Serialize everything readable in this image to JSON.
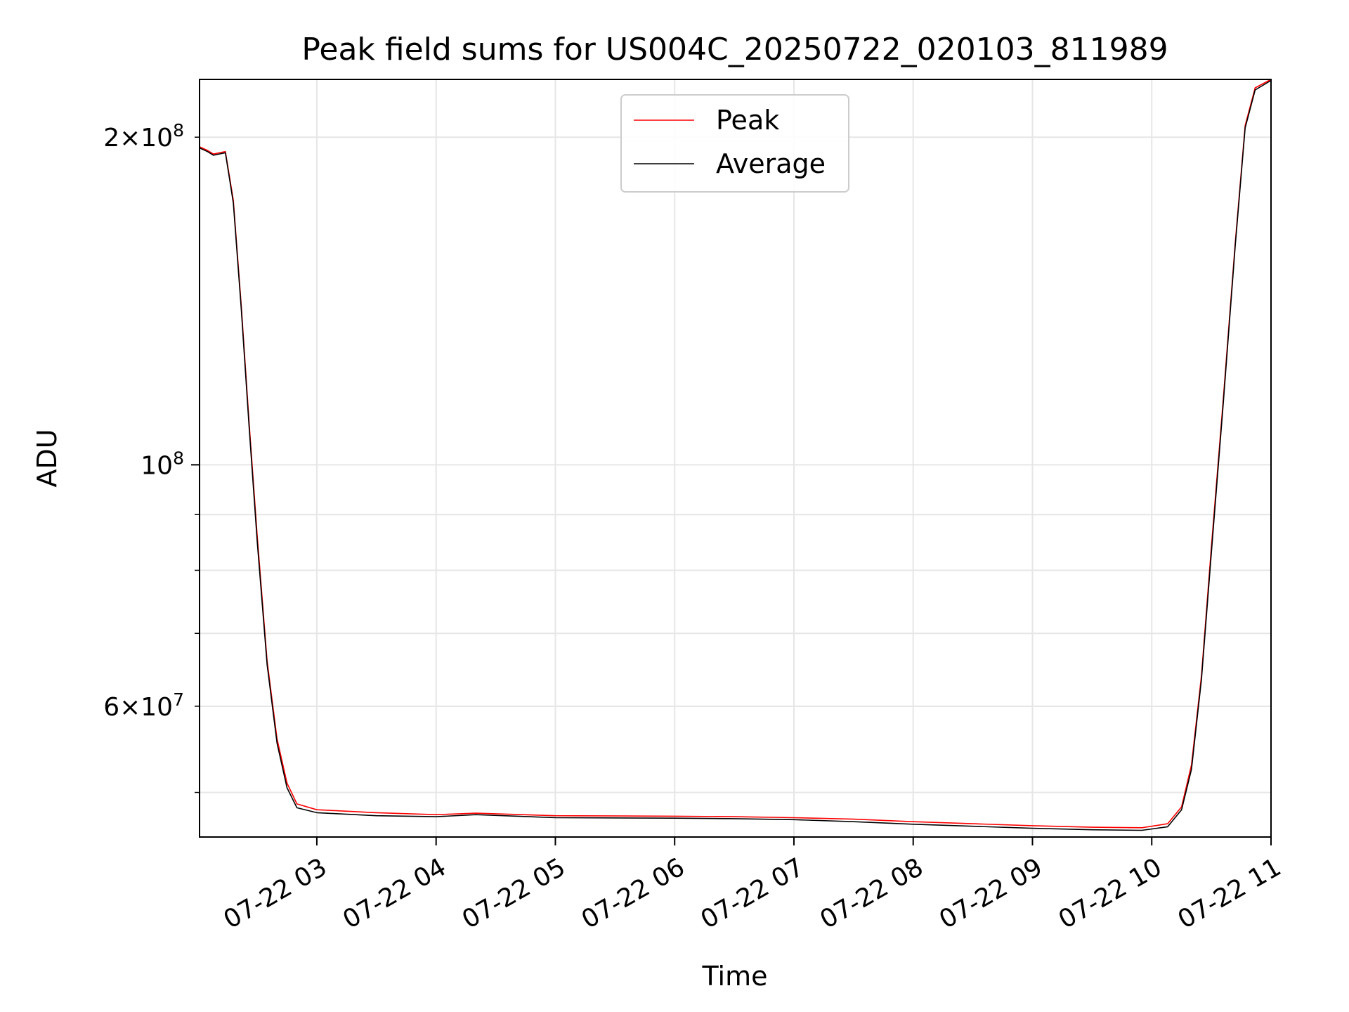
{
  "chart_data": {
    "type": "line",
    "title": "Peak field sums for US004C_20250722_020103_811989",
    "xlabel": "Time",
    "ylabel": "ADU",
    "x_axis": {
      "kind": "datetime",
      "range": [
        "2025-07-22 02:01",
        "2025-07-22 11:00"
      ],
      "tick_labels": [
        "07-22 03",
        "07-22 04",
        "07-22 05",
        "07-22 06",
        "07-22 07",
        "07-22 08",
        "07-22 09",
        "07-22 10",
        "07-22 11"
      ],
      "tick_label_rotation_deg": 30
    },
    "y_axis": {
      "scale": "log",
      "range": [
        45500000,
        226000000
      ],
      "major_ticks": [
        {
          "value": 100000000,
          "label": "10^8"
        }
      ],
      "minor_ticks": [
        {
          "value": 50000000
        },
        {
          "value": 60000000,
          "label": "6×10^7"
        },
        {
          "value": 70000000
        },
        {
          "value": 80000000
        },
        {
          "value": 90000000
        },
        {
          "value": 200000000,
          "label": "2×10^8"
        }
      ]
    },
    "grid": true,
    "legend": {
      "placement": "upper center"
    },
    "series": [
      {
        "name": "Peak",
        "color": "#ff0000",
        "points": [
          [
            "2025-07-22 02:01",
            196000000
          ],
          [
            "2025-07-22 02:05",
            194500000
          ],
          [
            "2025-07-22 02:08",
            193000000
          ],
          [
            "2025-07-22 02:14",
            194000000
          ],
          [
            "2025-07-22 02:18",
            175000000
          ],
          [
            "2025-07-22 02:22",
            140000000
          ],
          [
            "2025-07-22 02:26",
            109000000
          ],
          [
            "2025-07-22 02:30",
            86000000
          ],
          [
            "2025-07-22 02:35",
            66000000
          ],
          [
            "2025-07-22 02:40",
            56000000
          ],
          [
            "2025-07-22 02:45",
            51000000
          ],
          [
            "2025-07-22 02:50",
            48800000
          ],
          [
            "2025-07-22 03:00",
            48200000
          ],
          [
            "2025-07-22 03:30",
            47900000
          ],
          [
            "2025-07-22 04:00",
            47700000
          ],
          [
            "2025-07-22 04:20",
            47850000
          ],
          [
            "2025-07-22 05:00",
            47600000
          ],
          [
            "2025-07-22 06:00",
            47550000
          ],
          [
            "2025-07-22 06:30",
            47500000
          ],
          [
            "2025-07-22 07:00",
            47400000
          ],
          [
            "2025-07-22 07:30",
            47250000
          ],
          [
            "2025-07-22 08:00",
            47000000
          ],
          [
            "2025-07-22 08:30",
            46800000
          ],
          [
            "2025-07-22 09:00",
            46600000
          ],
          [
            "2025-07-22 09:30",
            46450000
          ],
          [
            "2025-07-22 09:55",
            46400000
          ],
          [
            "2025-07-22 10:08",
            46800000
          ],
          [
            "2025-07-22 10:15",
            48500000
          ],
          [
            "2025-07-22 10:20",
            53000000
          ],
          [
            "2025-07-22 10:25",
            64000000
          ],
          [
            "2025-07-22 10:30",
            84000000
          ],
          [
            "2025-07-22 10:36",
            115000000
          ],
          [
            "2025-07-22 10:42",
            160000000
          ],
          [
            "2025-07-22 10:47",
            205000000
          ],
          [
            "2025-07-22 10:52",
            222000000
          ],
          [
            "2025-07-22 11:00",
            226000000
          ]
        ]
      },
      {
        "name": "Average",
        "color": "#000000",
        "points": [
          [
            "2025-07-22 02:01",
            195500000
          ],
          [
            "2025-07-22 02:05",
            194000000
          ],
          [
            "2025-07-22 02:08",
            192500000
          ],
          [
            "2025-07-22 02:14",
            193500000
          ],
          [
            "2025-07-22 02:18",
            174000000
          ],
          [
            "2025-07-22 02:22",
            139000000
          ],
          [
            "2025-07-22 02:26",
            108000000
          ],
          [
            "2025-07-22 02:30",
            85000000
          ],
          [
            "2025-07-22 02:35",
            65500000
          ],
          [
            "2025-07-22 02:40",
            55500000
          ],
          [
            "2025-07-22 02:45",
            50500000
          ],
          [
            "2025-07-22 02:50",
            48400000
          ],
          [
            "2025-07-22 03:00",
            47900000
          ],
          [
            "2025-07-22 03:30",
            47600000
          ],
          [
            "2025-07-22 04:00",
            47500000
          ],
          [
            "2025-07-22 04:20",
            47700000
          ],
          [
            "2025-07-22 05:00",
            47400000
          ],
          [
            "2025-07-22 06:00",
            47350000
          ],
          [
            "2025-07-22 06:30",
            47300000
          ],
          [
            "2025-07-22 07:00",
            47200000
          ],
          [
            "2025-07-22 07:30",
            47000000
          ],
          [
            "2025-07-22 08:00",
            46750000
          ],
          [
            "2025-07-22 08:30",
            46550000
          ],
          [
            "2025-07-22 09:00",
            46350000
          ],
          [
            "2025-07-22 09:30",
            46200000
          ],
          [
            "2025-07-22 09:55",
            46150000
          ],
          [
            "2025-07-22 10:08",
            46500000
          ],
          [
            "2025-07-22 10:15",
            48200000
          ],
          [
            "2025-07-22 10:20",
            52500000
          ],
          [
            "2025-07-22 10:25",
            63500000
          ],
          [
            "2025-07-22 10:30",
            83000000
          ],
          [
            "2025-07-22 10:36",
            114000000
          ],
          [
            "2025-07-22 10:42",
            159000000
          ],
          [
            "2025-07-22 10:47",
            204000000
          ],
          [
            "2025-07-22 10:52",
            221000000
          ],
          [
            "2025-07-22 11:00",
            225500000
          ]
        ]
      }
    ]
  }
}
